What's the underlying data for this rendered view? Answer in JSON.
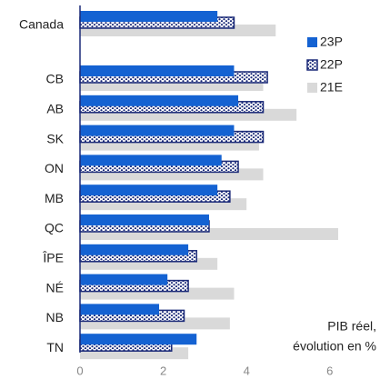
{
  "chart_data": {
    "type": "bar",
    "orientation": "horizontal",
    "categories": [
      "Canada",
      "CB",
      "AB",
      "SK",
      "ON",
      "MB",
      "QC",
      "ÎPE",
      "NÉ",
      "NB",
      "TN"
    ],
    "series": [
      {
        "name": "23P",
        "color": "#1462d2",
        "pattern": "solid",
        "values": [
          3.3,
          3.7,
          3.8,
          3.7,
          3.4,
          3.3,
          3.1,
          2.6,
          2.1,
          1.9,
          2.8
        ]
      },
      {
        "name": "22P",
        "color": "#1b2a78",
        "pattern": "dots",
        "values": [
          3.7,
          4.5,
          4.4,
          4.4,
          3.8,
          3.6,
          3.1,
          2.8,
          2.6,
          2.5,
          2.2
        ]
      },
      {
        "name": "21E",
        "color": "#d9d9d9",
        "pattern": "solid",
        "values": [
          4.7,
          4.4,
          5.2,
          4.3,
          4.4,
          4.0,
          6.2,
          3.3,
          3.7,
          3.6,
          2.6
        ]
      }
    ],
    "xlim": [
      0,
      7
    ],
    "xticks": [
      0,
      2,
      4,
      6
    ],
    "annotation": [
      "PIB réel,",
      "évolution en %"
    ],
    "legend": "upper right",
    "grid": false
  }
}
